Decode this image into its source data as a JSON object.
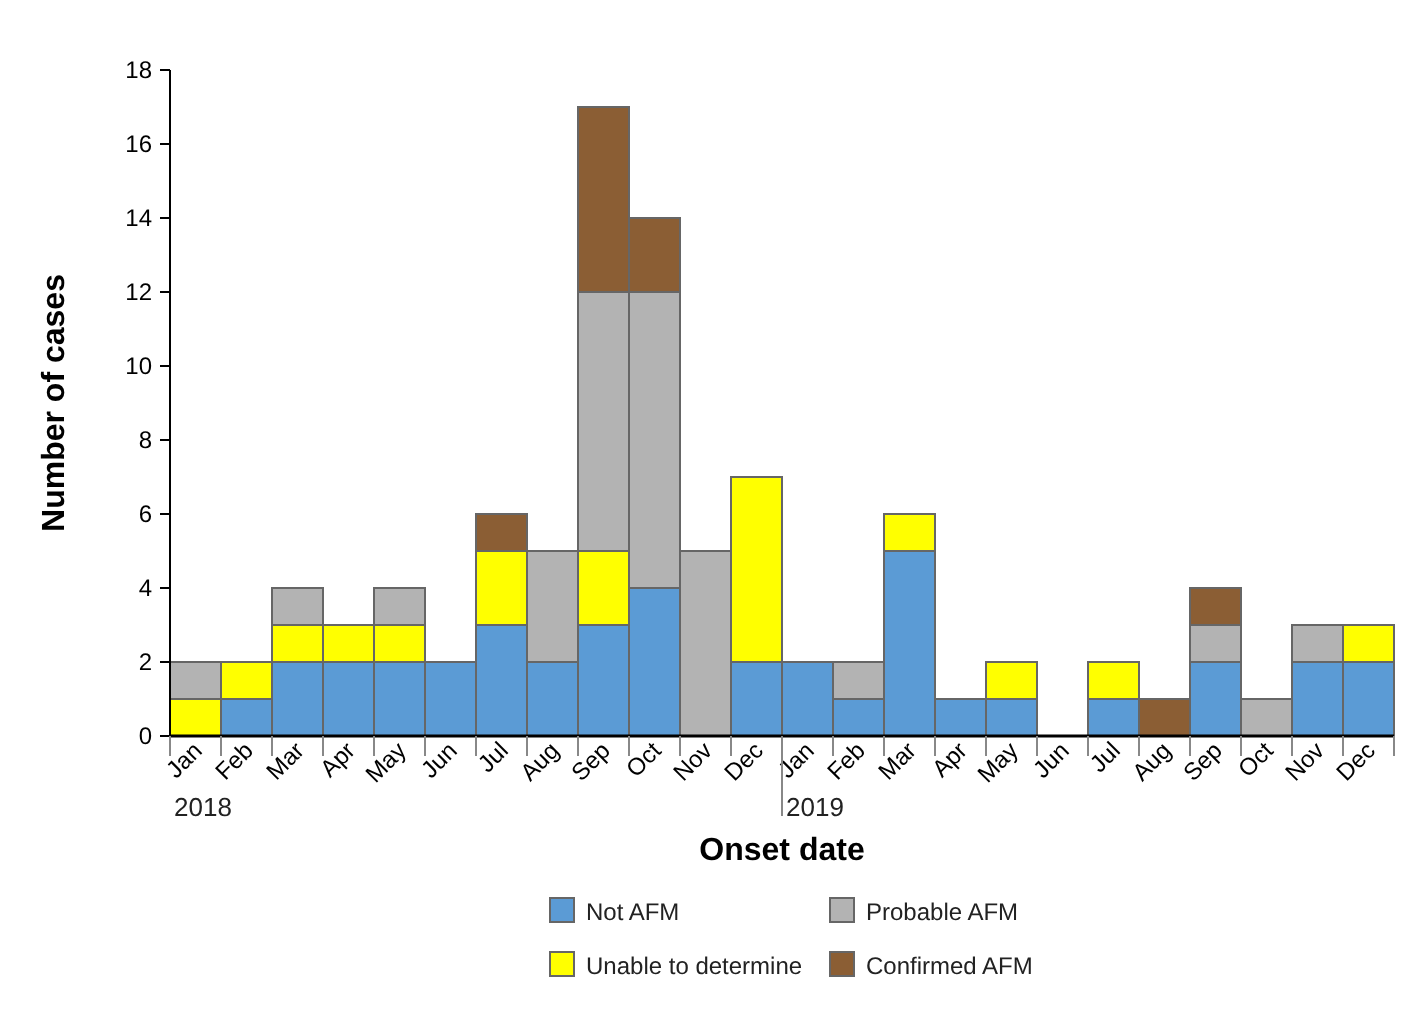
{
  "chart_data": {
    "type": "bar",
    "stacked": true,
    "xlabel": "Onset date",
    "ylabel": "Number of cases",
    "categories": [
      "Jan",
      "Feb",
      "Mar",
      "Apr",
      "May",
      "Jun",
      "Jul",
      "Aug",
      "Sep",
      "Oct",
      "Nov",
      "Dec",
      "Jan",
      "Feb",
      "Mar",
      "Apr",
      "May",
      "Jun",
      "Jul",
      "Aug",
      "Sep",
      "Oct",
      "Nov",
      "Dec"
    ],
    "series": [
      {
        "name": "Not AFM",
        "color": "#5b9bd5",
        "values": [
          0,
          1,
          2,
          2,
          2,
          2,
          3,
          2,
          3,
          4,
          0,
          2,
          2,
          1,
          5,
          1,
          1,
          0,
          1,
          0,
          2,
          0,
          2,
          2
        ]
      },
      {
        "name": "Unable to determine",
        "color": "#ffff00",
        "values": [
          1,
          1,
          1,
          1,
          1,
          0,
          2,
          0,
          2,
          0,
          0,
          5,
          0,
          0,
          1,
          0,
          1,
          0,
          1,
          0,
          0,
          0,
          0,
          1
        ]
      },
      {
        "name": "Probable AFM",
        "color": "#b3b3b3",
        "values": [
          1,
          0,
          1,
          0,
          1,
          0,
          0,
          3,
          7,
          8,
          5,
          0,
          0,
          1,
          0,
          0,
          0,
          0,
          0,
          0,
          1,
          1,
          1,
          0
        ]
      },
      {
        "name": "Confirmed AFM",
        "color": "#8b5e34",
        "values": [
          0,
          0,
          0,
          0,
          0,
          0,
          1,
          0,
          5,
          2,
          0,
          0,
          0,
          0,
          0,
          0,
          0,
          0,
          0,
          1,
          1,
          0,
          0,
          0
        ]
      }
    ],
    "ylim": [
      0,
      18
    ],
    "yticks": [
      0,
      2,
      4,
      6,
      8,
      10,
      12,
      14,
      16,
      18
    ],
    "annotations": [
      "2018",
      "2019"
    ],
    "grid": false,
    "legend": "bottom"
  }
}
